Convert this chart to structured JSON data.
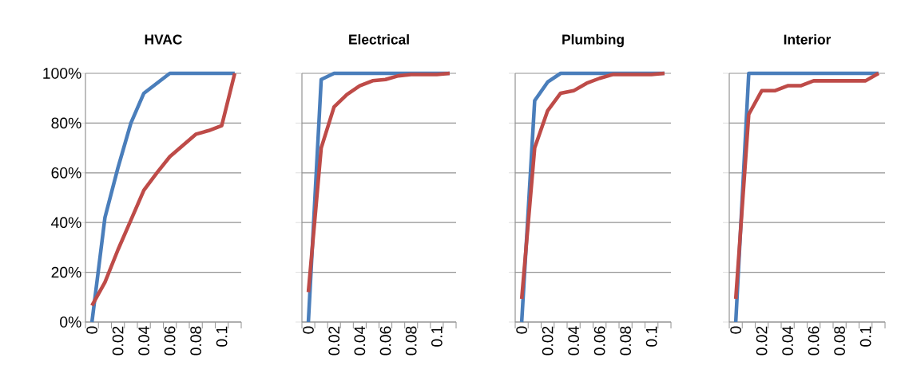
{
  "chart_data": [
    {
      "type": "line",
      "title": "HVAC",
      "categories": [
        "0",
        null,
        "0.02",
        null,
        "0.04",
        null,
        "0.06",
        null,
        "0.08",
        null,
        "0.1",
        null
      ],
      "ylim": [
        0,
        100
      ],
      "yticks": [
        {
          "value": 0,
          "label": "0%"
        },
        {
          "value": 20,
          "label": "20%"
        },
        {
          "value": 40,
          "label": "40%"
        },
        {
          "value": 60,
          "label": "60%"
        },
        {
          "value": 80,
          "label": "80%"
        },
        {
          "value": 100,
          "label": "100%"
        }
      ],
      "grid": "y",
      "series": [
        {
          "color": "#4a7ebb",
          "values": [
            0,
            42,
            62,
            80,
            92,
            96,
            100,
            100,
            100,
            100,
            100,
            100
          ]
        },
        {
          "color": "#be4b48",
          "values": [
            6.6,
            16,
            29,
            41,
            53,
            60,
            66.5,
            71,
            75.5,
            77,
            79,
            100
          ]
        }
      ]
    },
    {
      "type": "line",
      "title": "Electrical",
      "categories": [
        "0",
        null,
        "0.02",
        null,
        "0.04",
        null,
        "0.06",
        null,
        "0.08",
        null,
        "0.1",
        null
      ],
      "ylim": [
        0,
        100
      ],
      "yticks": [
        {
          "value": 0,
          "label": null
        },
        {
          "value": 20,
          "label": null
        },
        {
          "value": 40,
          "label": null
        },
        {
          "value": 60,
          "label": null
        },
        {
          "value": 80,
          "label": null
        },
        {
          "value": 100,
          "label": null
        }
      ],
      "grid": "y",
      "tick_labels": "x",
      "series": [
        {
          "color": "#4a7ebb",
          "values": [
            0,
            97.5,
            100,
            100,
            100,
            100,
            100,
            100,
            100,
            100,
            100,
            100
          ]
        },
        {
          "color": "#be4b48",
          "values": [
            12,
            70,
            86.5,
            91.5,
            95,
            97,
            97.5,
            99,
            99.5,
            99.5,
            99.5,
            100
          ]
        }
      ]
    },
    {
      "type": "line",
      "title": "Plumbing",
      "categories": [
        "0",
        null,
        "0.02",
        null,
        "0.04",
        null,
        "0.06",
        null,
        "0.08",
        null,
        "0.1",
        null
      ],
      "ylim": [
        0,
        100
      ],
      "yticks": [
        {
          "value": 0,
          "label": null
        },
        {
          "value": 20,
          "label": null
        },
        {
          "value": 40,
          "label": null
        },
        {
          "value": 60,
          "label": null
        },
        {
          "value": 80,
          "label": null
        },
        {
          "value": 100,
          "label": null
        }
      ],
      "grid": "y",
      "tick_labels": "x",
      "series": [
        {
          "color": "#4a7ebb",
          "values": [
            0,
            89,
            96.5,
            100,
            100,
            100,
            100,
            100,
            100,
            100,
            100,
            100
          ]
        },
        {
          "color": "#be4b48",
          "values": [
            9.3,
            70,
            85,
            92,
            93,
            96,
            98,
            99.5,
            99.5,
            99.5,
            99.5,
            100
          ]
        }
      ]
    },
    {
      "type": "line",
      "title": "Interior",
      "categories": [
        "0",
        null,
        "0.02",
        null,
        "0.04",
        null,
        "0.06",
        null,
        "0.08",
        null,
        "0.1",
        null
      ],
      "ylim": [
        0,
        100
      ],
      "yticks": [
        {
          "value": 0,
          "label": null
        },
        {
          "value": 20,
          "label": null
        },
        {
          "value": 40,
          "label": null
        },
        {
          "value": 60,
          "label": null
        },
        {
          "value": 80,
          "label": null
        },
        {
          "value": 100,
          "label": null
        }
      ],
      "grid": "y",
      "tick_labels": "x",
      "series": [
        {
          "color": "#4a7ebb",
          "values": [
            0,
            100,
            100,
            100,
            100,
            100,
            100,
            100,
            100,
            100,
            100,
            100
          ]
        },
        {
          "color": "#be4b48",
          "values": [
            9.3,
            83.5,
            93,
            93,
            95,
            95,
            97,
            97,
            97,
            97,
            97,
            100
          ]
        }
      ]
    }
  ]
}
